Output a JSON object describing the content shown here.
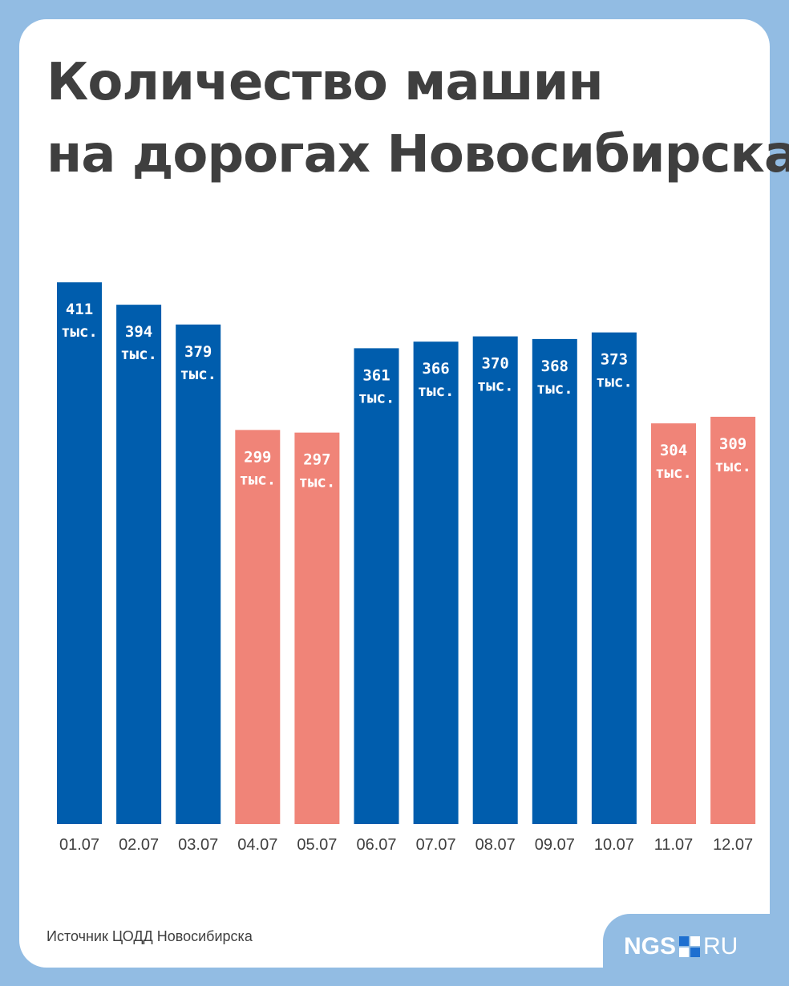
{
  "title": {
    "line1": "Количество машин",
    "line2": "на дорогах Новосибирска"
  },
  "source": "Источник ЦОДД Новосибирска",
  "logo": {
    "left": "NGS",
    "right": "RU",
    "square_icon": "ngs-square-icon"
  },
  "colors": {
    "background": "#92bce3",
    "weekday": "#005dad",
    "weekend": "#f08478",
    "text": "#3f3f3f"
  },
  "chart_data": {
    "type": "bar",
    "title": "Количество машин на дорогах Новосибирска",
    "xlabel": "",
    "ylabel": "",
    "unit": "тыс.",
    "categories": [
      "01.07",
      "02.07",
      "03.07",
      "04.07",
      "05.07",
      "06.07",
      "07.07",
      "08.07",
      "09.07",
      "10.07",
      "11.07",
      "12.07"
    ],
    "values": [
      411,
      394,
      379,
      299,
      297,
      361,
      366,
      370,
      368,
      373,
      304,
      309
    ],
    "highlight": [
      false,
      false,
      false,
      true,
      true,
      false,
      false,
      false,
      false,
      false,
      true,
      true
    ],
    "grid": false,
    "legend": "none"
  }
}
